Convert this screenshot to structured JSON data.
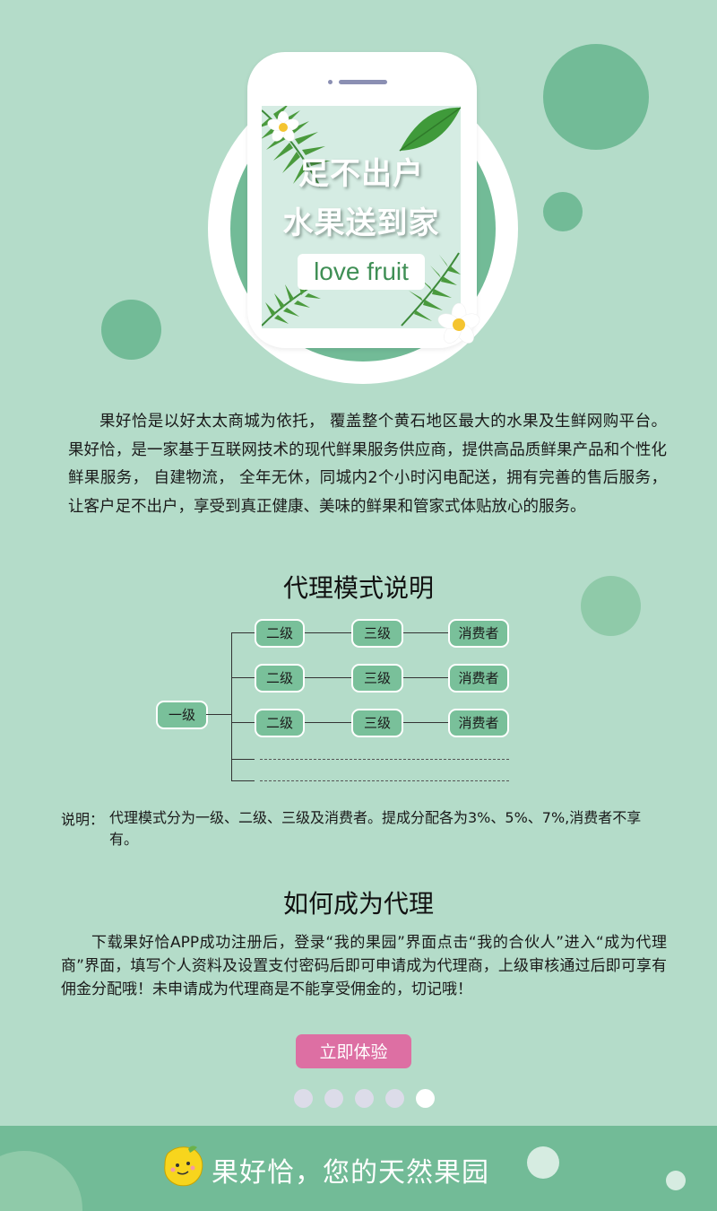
{
  "hero": {
    "line1": "足不出户",
    "line2": "水果送到家",
    "badge": "love fruit"
  },
  "intro": {
    "text": "果好恰是以好太太商城为依托， 覆盖整个黄石地区最大的水果及生鲜网购平台。果好恰，是一家基于互联网技术的现代鲜果服务供应商，提供高品质鲜果产品和个性化鲜果服务， 自建物流， 全年无休，同城内2个小时闪电配送，拥有完善的售后服务，让客户足不出户，享受到真正健康、美味的鲜果和管家式体贴放心的服务。"
  },
  "agent_section": {
    "title": "代理模式说明",
    "root": "一级",
    "rows": [
      {
        "level2": "二级",
        "level3": "三级",
        "consumer": "消费者"
      },
      {
        "level2": "二级",
        "level3": "三级",
        "consumer": "消费者"
      },
      {
        "level2": "二级",
        "level3": "三级",
        "consumer": "消费者"
      }
    ],
    "note_label": "说明：",
    "note_text": "代理模式分为一级、二级、三级及消费者。提成分配各为3%、5%、7%,消费者不享有。"
  },
  "how_section": {
    "title": "如何成为代理",
    "text": "下载果好恰APP成功注册后，登录“我的果园”界面点击“我的合伙人”进入“成为代理商”界面，填写个人资料及设置支付密码后即可申请成为代理商，上级审核通过后即可享有佣金分配哦！未申请成为代理商是不能享受佣金的，切记哦！",
    "cta_label": "立即体验"
  },
  "pagination": {
    "total": 5,
    "active_index": 4
  },
  "footer": {
    "slogan": "果好恰，您的天然果园"
  },
  "colors": {
    "background": "#b4dcc9",
    "accent_green": "#72bb97",
    "cta_pink": "#dd6fa3"
  }
}
